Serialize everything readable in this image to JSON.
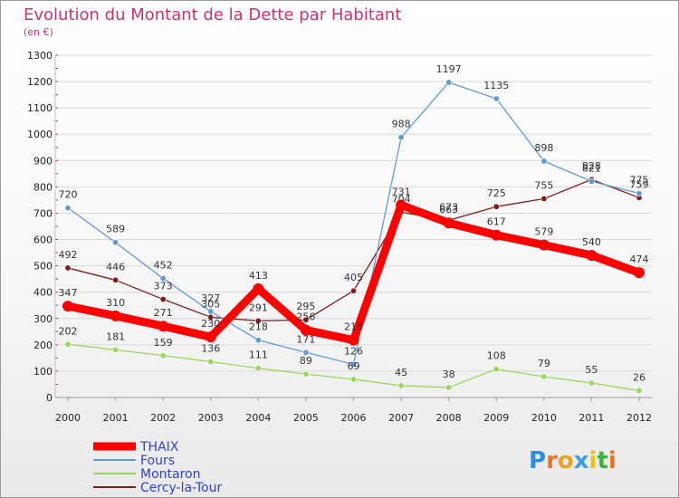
{
  "chart_data": {
    "type": "line",
    "title": "Evolution du Montant de la Dette par Habitant",
    "subtitle": "(en €)",
    "x": [
      "2000",
      "2001",
      "2002",
      "2003",
      "2004",
      "2005",
      "2006",
      "2007",
      "2008",
      "2009",
      "2010",
      "2011",
      "2012"
    ],
    "ylim": [
      0,
      1300
    ],
    "yticks": [
      0,
      100,
      200,
      300,
      400,
      500,
      600,
      700,
      800,
      900,
      1000,
      1100,
      1200,
      1300
    ],
    "series": [
      {
        "name": "THAIX",
        "color": "#ff0000",
        "values": [
          347,
          310,
          271,
          230,
          413,
          256,
          218,
          731,
          663,
          617,
          579,
          540,
          474
        ]
      },
      {
        "name": "Fours",
        "color": "#5f9ad4",
        "values": [
          720,
          589,
          452,
          327,
          218,
          171,
          126,
          988,
          1197,
          1135,
          898,
          821,
          775
        ]
      },
      {
        "name": "Montaron",
        "color": "#99d65c",
        "values": [
          202,
          181,
          159,
          136,
          111,
          89,
          69,
          45,
          38,
          108,
          79,
          55,
          26
        ]
      },
      {
        "name": "Cercy-la-Tour",
        "color": "#7a1e1e",
        "values": [
          492,
          446,
          373,
          305,
          291,
          295,
          405,
          704,
          673,
          725,
          755,
          828,
          759
        ]
      }
    ],
    "grid": true,
    "legend_position": "bottom-left"
  },
  "logo": {
    "text": "Proxiti"
  }
}
